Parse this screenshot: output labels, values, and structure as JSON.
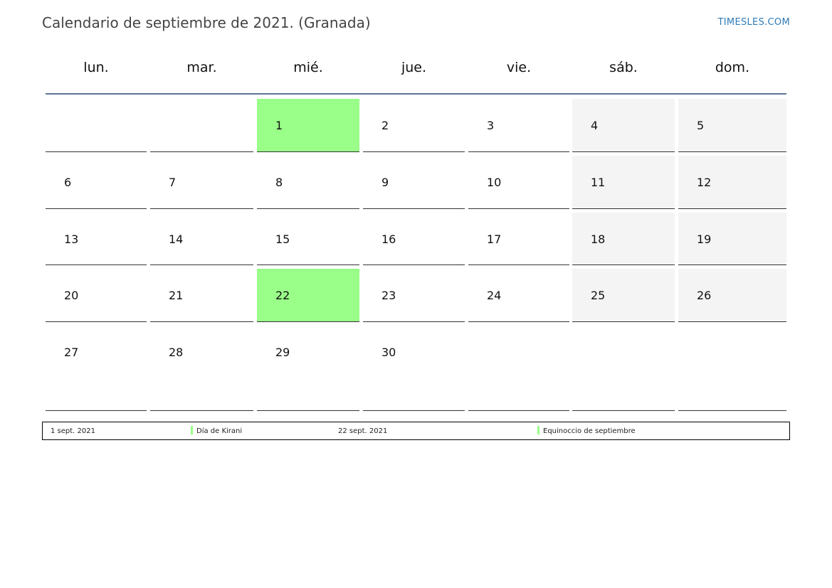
{
  "header": {
    "title": "Calendario de septiembre de 2021. (Granada)",
    "site": "TIMESLES.COM"
  },
  "weekdays": [
    "lun.",
    "mar.",
    "mié.",
    "jue.",
    "vie.",
    "sáb.",
    "dom."
  ],
  "colors": {
    "holiday": "#99ff88",
    "weekend": "#f4f4f4",
    "rule": "#5c7595"
  },
  "weeks": [
    [
      "",
      "",
      "1",
      "2",
      "3",
      "4",
      "5"
    ],
    [
      "6",
      "7",
      "8",
      "9",
      "10",
      "11",
      "12"
    ],
    [
      "13",
      "14",
      "15",
      "16",
      "17",
      "18",
      "19"
    ],
    [
      "20",
      "21",
      "22",
      "23",
      "24",
      "25",
      "26"
    ],
    [
      "27",
      "28",
      "29",
      "30",
      "",
      "",
      ""
    ]
  ],
  "holidays": [
    "1",
    "22"
  ],
  "legend": [
    {
      "date": "1 sept. 2021",
      "name": "Día de Kirani"
    },
    {
      "date": "22 sept. 2021",
      "name": "Equinoccio de septiembre"
    }
  ]
}
